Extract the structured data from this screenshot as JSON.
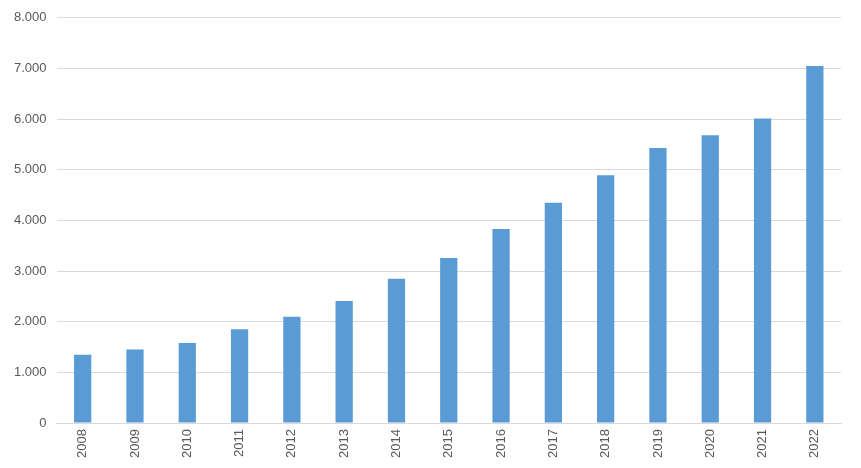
{
  "chart_data": {
    "type": "bar",
    "categories": [
      "2008",
      "2009",
      "2010",
      "2011",
      "2012",
      "2013",
      "2014",
      "2015",
      "2016",
      "2017",
      "2018",
      "2019",
      "2020",
      "2021",
      "2022"
    ],
    "values": [
      1350,
      1450,
      1580,
      1850,
      2100,
      2410,
      2850,
      3260,
      3830,
      4350,
      4890,
      5430,
      5680,
      6010,
      7050
    ],
    "color": "#5b9bd5",
    "ylim": [
      0,
      8000
    ],
    "yticks": [
      0,
      {
        "value": 1000,
        "label": "1.000"
      },
      {
        "value": 2000,
        "label": "2.000"
      },
      {
        "value": 3000,
        "label": "3.000"
      },
      {
        "value": 4000,
        "label": "4.000"
      },
      {
        "value": 5000,
        "label": "5.000"
      },
      {
        "value": 6000,
        "label": "6.000"
      },
      {
        "value": 7000,
        "label": "7.000"
      },
      {
        "value": 8000,
        "label": "8.000"
      }
    ],
    "grid": true
  }
}
